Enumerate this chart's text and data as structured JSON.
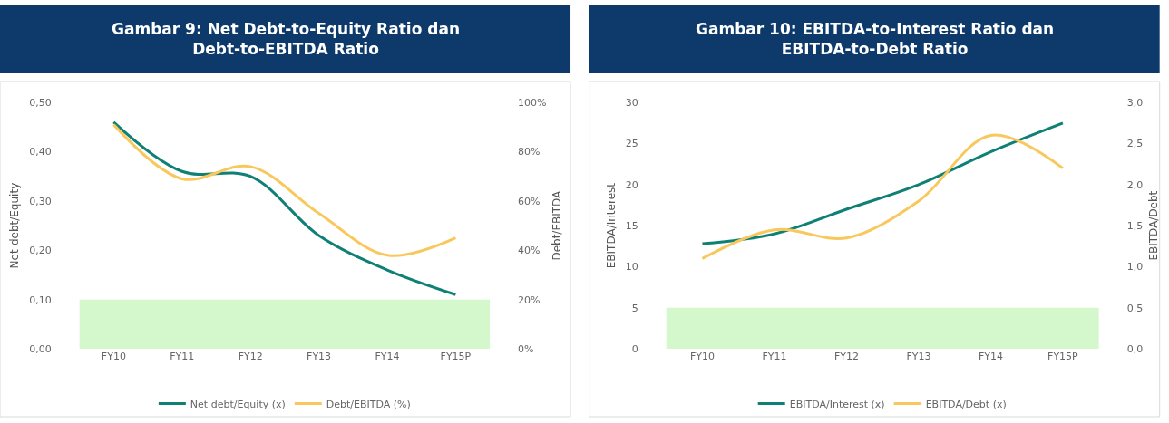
{
  "chart_data": [
    {
      "type": "line",
      "title": "Gambar 9: Net Debt-to-Equity Ratio dan Debt-to-EBITDA Ratio",
      "ylabel": "Net-debt/Equity",
      "y2label": "Debt/EBITDA",
      "categories": [
        "FY10",
        "FY11",
        "FY12",
        "FY13",
        "FY14",
        "FY15P"
      ],
      "series": [
        {
          "name": "Net debt/Equity (x)",
          "color": "#0e8076",
          "values": [
            0.46,
            0.36,
            0.35,
            0.23,
            0.16,
            0.11
          ]
        },
        {
          "name": "Debt/EBITDA (%)",
          "color": "#f9c85c",
          "values": [
            91,
            69,
            74,
            55,
            38,
            45
          ],
          "axis": "y2"
        }
      ],
      "ylim": [
        0,
        0.5
      ],
      "yticks": [
        {
          "value": 0,
          "label": "0,00"
        },
        {
          "value": 0.1,
          "label": "0,10"
        },
        {
          "value": 0.2,
          "label": "0,20"
        },
        {
          "value": 0.3,
          "label": "0,30"
        },
        {
          "value": 0.4,
          "label": "0,40"
        },
        {
          "value": 0.5,
          "label": "0,50"
        }
      ],
      "y2lim": [
        0,
        100
      ],
      "y2ticks": [
        {
          "value": 0,
          "label": "0%"
        },
        {
          "value": 20,
          "label": "20%"
        },
        {
          "value": 40,
          "label": "40%"
        },
        {
          "value": 60,
          "label": "60%"
        },
        {
          "value": 80,
          "label": "80%"
        },
        {
          "value": 100,
          "label": "100%"
        }
      ],
      "bands": [
        {
          "axis": "y",
          "from": 0,
          "to": 0.1,
          "color": "#d4f7cc"
        }
      ],
      "legend": "bottom",
      "grid": false,
      "line_style": "solid",
      "marker": "none"
    },
    {
      "type": "line",
      "title": "Gambar 10: EBITDA-to-Interest Ratio dan EBITDA-to-Debt Ratio",
      "ylabel": "EBITDA/Interest",
      "y2label": "EBITDA/Debt",
      "categories": [
        "FY10",
        "FY11",
        "FY12",
        "FY13",
        "FY14",
        "FY15P"
      ],
      "series": [
        {
          "name": "EBITDA/Interest (x)",
          "color": "#0e8076",
          "values": [
            12.8,
            14,
            17,
            20,
            24,
            27.5
          ]
        },
        {
          "name": "EBITDA/Debt (x)",
          "color": "#f9c85c",
          "values": [
            1.1,
            1.45,
            1.35,
            1.8,
            2.6,
            2.2
          ],
          "axis": "y2"
        }
      ],
      "ylim": [
        0,
        30
      ],
      "yticks": [
        0,
        5,
        10,
        15,
        20,
        25,
        30
      ],
      "y2lim": [
        0,
        3
      ],
      "y2ticks": [
        {
          "value": 0,
          "label": "0,0"
        },
        {
          "value": 0.5,
          "label": "0,5"
        },
        {
          "value": 1,
          "label": "1,0"
        },
        {
          "value": 1.5,
          "label": "1,5"
        },
        {
          "value": 2,
          "label": "2,0"
        },
        {
          "value": 2.5,
          "label": "2,5"
        },
        {
          "value": 3,
          "label": "3,0"
        }
      ],
      "bands": [
        {
          "axis": "y",
          "from": 0,
          "to": 5,
          "color": "#d4f7cc"
        }
      ],
      "legend": "bottom",
      "grid": false,
      "line_style": "solid",
      "marker": "none"
    }
  ]
}
